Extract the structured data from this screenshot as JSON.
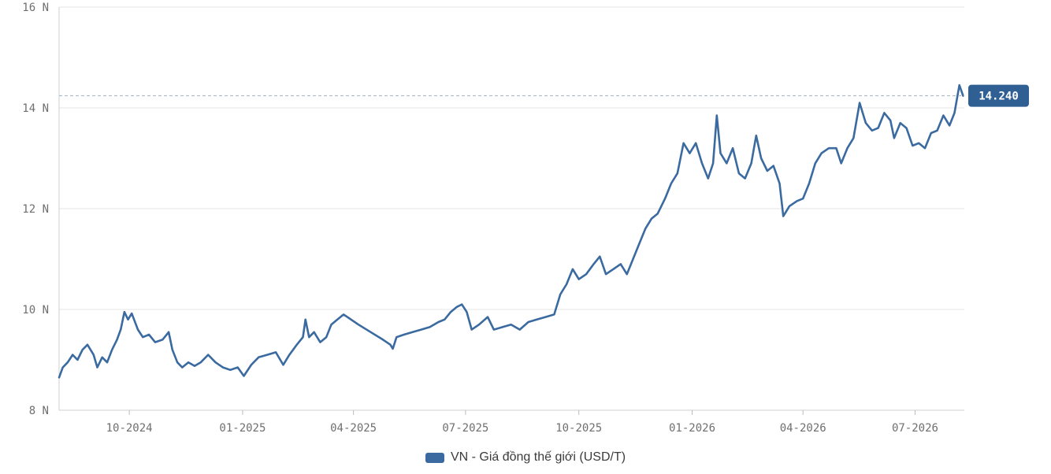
{
  "chart_data": {
    "type": "line",
    "title": "",
    "xlabel": "",
    "ylabel": "",
    "ylim": [
      8,
      16
    ],
    "yunit_suffix": "N",
    "yticks": [
      {
        "value": 8,
        "label": "8 N"
      },
      {
        "value": 10,
        "label": "10 N"
      },
      {
        "value": 12,
        "label": "12 N"
      },
      {
        "value": 14,
        "label": "14 N"
      },
      {
        "value": 16,
        "label": "16 N"
      }
    ],
    "xlim": [
      "2024-08-05",
      "2026-08-10"
    ],
    "xticks": [
      {
        "date": "2024-10-01",
        "label": "10-2024"
      },
      {
        "date": "2025-01-01",
        "label": "01-2025"
      },
      {
        "date": "2025-04-01",
        "label": "04-2025"
      },
      {
        "date": "2025-07-01",
        "label": "07-2025"
      },
      {
        "date": "2025-10-01",
        "label": "10-2025"
      },
      {
        "date": "2026-01-01",
        "label": "01-2026"
      },
      {
        "date": "2026-04-01",
        "label": "04-2026"
      },
      {
        "date": "2026-07-01",
        "label": "07-2026"
      }
    ],
    "grid": true,
    "legend_position": "bottom-center",
    "last_value": 14.24,
    "last_value_label": "14.240",
    "series": [
      {
        "name": "VN - Giá đồng thế giới (USD/T)",
        "color": "#3a6aa0",
        "points": [
          [
            "2024-08-05",
            8.65
          ],
          [
            "2024-08-08",
            8.85
          ],
          [
            "2024-08-12",
            8.95
          ],
          [
            "2024-08-16",
            9.1
          ],
          [
            "2024-08-20",
            9.0
          ],
          [
            "2024-08-24",
            9.2
          ],
          [
            "2024-08-28",
            9.3
          ],
          [
            "2024-09-02",
            9.1
          ],
          [
            "2024-09-05",
            8.85
          ],
          [
            "2024-09-09",
            9.05
          ],
          [
            "2024-09-13",
            8.95
          ],
          [
            "2024-09-17",
            9.2
          ],
          [
            "2024-09-21",
            9.4
          ],
          [
            "2024-09-24",
            9.6
          ],
          [
            "2024-09-27",
            9.95
          ],
          [
            "2024-09-30",
            9.8
          ],
          [
            "2024-10-03",
            9.92
          ],
          [
            "2024-10-08",
            9.6
          ],
          [
            "2024-10-12",
            9.45
          ],
          [
            "2024-10-17",
            9.5
          ],
          [
            "2024-10-22",
            9.35
          ],
          [
            "2024-10-28",
            9.4
          ],
          [
            "2024-11-02",
            9.55
          ],
          [
            "2024-11-05",
            9.2
          ],
          [
            "2024-11-09",
            8.95
          ],
          [
            "2024-11-13",
            8.85
          ],
          [
            "2024-11-18",
            8.95
          ],
          [
            "2024-11-23",
            8.88
          ],
          [
            "2024-11-28",
            8.95
          ],
          [
            "2024-12-04",
            9.1
          ],
          [
            "2024-12-10",
            8.95
          ],
          [
            "2024-12-16",
            8.85
          ],
          [
            "2024-12-22",
            8.8
          ],
          [
            "2024-12-28",
            8.85
          ],
          [
            "2025-01-02",
            8.68
          ],
          [
            "2025-01-08",
            8.9
          ],
          [
            "2025-01-14",
            9.05
          ],
          [
            "2025-01-21",
            9.1
          ],
          [
            "2025-01-28",
            9.15
          ],
          [
            "2025-02-03",
            8.9
          ],
          [
            "2025-02-08",
            9.1
          ],
          [
            "2025-02-14",
            9.3
          ],
          [
            "2025-02-19",
            9.45
          ],
          [
            "2025-02-21",
            9.8
          ],
          [
            "2025-02-24",
            9.45
          ],
          [
            "2025-02-28",
            9.55
          ],
          [
            "2025-03-05",
            9.35
          ],
          [
            "2025-03-10",
            9.45
          ],
          [
            "2025-03-14",
            9.7
          ],
          [
            "2025-03-19",
            9.8
          ],
          [
            "2025-03-24",
            9.9
          ],
          [
            "2025-03-27",
            9.85
          ],
          [
            "2025-04-05",
            9.7
          ],
          [
            "2025-04-15",
            9.55
          ],
          [
            "2025-04-25",
            9.4
          ],
          [
            "2025-05-01",
            9.3
          ],
          [
            "2025-05-03",
            9.22
          ],
          [
            "2025-05-06",
            9.45
          ],
          [
            "2025-05-12",
            9.5
          ],
          [
            "2025-05-19",
            9.55
          ],
          [
            "2025-05-26",
            9.6
          ],
          [
            "2025-06-02",
            9.65
          ],
          [
            "2025-06-09",
            9.75
          ],
          [
            "2025-06-14",
            9.8
          ],
          [
            "2025-06-19",
            9.95
          ],
          [
            "2025-06-24",
            10.05
          ],
          [
            "2025-06-28",
            10.1
          ],
          [
            "2025-07-02",
            9.95
          ],
          [
            "2025-07-06",
            9.6
          ],
          [
            "2025-07-12",
            9.7
          ],
          [
            "2025-07-19",
            9.85
          ],
          [
            "2025-07-24",
            9.6
          ],
          [
            "2025-07-31",
            9.65
          ],
          [
            "2025-08-07",
            9.7
          ],
          [
            "2025-08-14",
            9.6
          ],
          [
            "2025-08-21",
            9.75
          ],
          [
            "2025-08-28",
            9.8
          ],
          [
            "2025-09-04",
            9.85
          ],
          [
            "2025-09-11",
            9.9
          ],
          [
            "2025-09-16",
            10.3
          ],
          [
            "2025-09-21",
            10.5
          ],
          [
            "2025-09-26",
            10.8
          ],
          [
            "2025-10-01",
            10.6
          ],
          [
            "2025-10-07",
            10.7
          ],
          [
            "2025-10-13",
            10.9
          ],
          [
            "2025-10-18",
            11.05
          ],
          [
            "2025-10-23",
            10.7
          ],
          [
            "2025-10-29",
            10.8
          ],
          [
            "2025-11-04",
            10.9
          ],
          [
            "2025-11-09",
            10.7
          ],
          [
            "2025-11-14",
            11.0
          ],
          [
            "2025-11-19",
            11.3
          ],
          [
            "2025-11-24",
            11.6
          ],
          [
            "2025-11-29",
            11.8
          ],
          [
            "2025-12-04",
            11.9
          ],
          [
            "2025-12-10",
            12.2
          ],
          [
            "2025-12-15",
            12.5
          ],
          [
            "2025-12-20",
            12.7
          ],
          [
            "2025-12-25",
            13.3
          ],
          [
            "2025-12-30",
            13.1
          ],
          [
            "2026-01-04",
            13.3
          ],
          [
            "2026-01-09",
            12.9
          ],
          [
            "2026-01-14",
            12.6
          ],
          [
            "2026-01-18",
            12.9
          ],
          [
            "2026-01-21",
            13.85
          ],
          [
            "2026-01-24",
            13.1
          ],
          [
            "2026-01-29",
            12.9
          ],
          [
            "2026-02-03",
            13.2
          ],
          [
            "2026-02-08",
            12.7
          ],
          [
            "2026-02-13",
            12.6
          ],
          [
            "2026-02-18",
            12.9
          ],
          [
            "2026-02-22",
            13.45
          ],
          [
            "2026-02-26",
            13.0
          ],
          [
            "2026-03-03",
            12.75
          ],
          [
            "2026-03-08",
            12.85
          ],
          [
            "2026-03-13",
            12.5
          ],
          [
            "2026-03-16",
            11.85
          ],
          [
            "2026-03-21",
            12.05
          ],
          [
            "2026-03-27",
            12.15
          ],
          [
            "2026-04-01",
            12.2
          ],
          [
            "2026-04-06",
            12.5
          ],
          [
            "2026-04-11",
            12.9
          ],
          [
            "2026-04-16",
            13.1
          ],
          [
            "2026-04-22",
            13.2
          ],
          [
            "2026-04-28",
            13.2
          ],
          [
            "2026-05-02",
            12.9
          ],
          [
            "2026-05-07",
            13.2
          ],
          [
            "2026-05-12",
            13.4
          ],
          [
            "2026-05-17",
            14.1
          ],
          [
            "2026-05-22",
            13.7
          ],
          [
            "2026-05-27",
            13.55
          ],
          [
            "2026-06-01",
            13.6
          ],
          [
            "2026-06-06",
            13.9
          ],
          [
            "2026-06-11",
            13.75
          ],
          [
            "2026-06-14",
            13.4
          ],
          [
            "2026-06-19",
            13.7
          ],
          [
            "2026-06-24",
            13.6
          ],
          [
            "2026-06-29",
            13.25
          ],
          [
            "2026-07-04",
            13.3
          ],
          [
            "2026-07-09",
            13.2
          ],
          [
            "2026-07-14",
            13.5
          ],
          [
            "2026-07-19",
            13.55
          ],
          [
            "2026-07-24",
            13.85
          ],
          [
            "2026-07-29",
            13.65
          ],
          [
            "2026-08-02",
            13.9
          ],
          [
            "2026-08-06",
            14.45
          ],
          [
            "2026-08-09",
            14.24
          ]
        ]
      }
    ]
  }
}
